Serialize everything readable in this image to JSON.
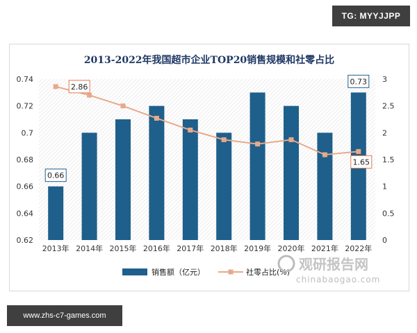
{
  "tag": "TG: MYYJJPP",
  "footer_url": "www.zhs-c7-games.com",
  "watermark": {
    "brand": "观研报告网",
    "url": "chinabaogao.com"
  },
  "colors": {
    "bar": "#1f5f8b",
    "line": "#e8a98a",
    "marker": "#e8a98a",
    "title": "#1f3864",
    "label_border_bar": "#1f5f8b",
    "label_border_line": "#e07b52"
  },
  "chart_data": {
    "type": "bar",
    "title": "2013-2022年我国超市企业TOP20销售规模和社零占比",
    "categories": [
      "2013年",
      "2014年",
      "2015年",
      "2016年",
      "2017年",
      "2018年",
      "2019年",
      "2020年",
      "2021年",
      "2022年"
    ],
    "series": [
      {
        "name": "销售额（亿元）",
        "type": "bar",
        "axis": "left",
        "values": [
          0.66,
          0.7,
          0.71,
          0.72,
          0.71,
          0.7,
          0.73,
          0.72,
          0.7,
          0.73
        ]
      },
      {
        "name": "社零占比(%)",
        "type": "line",
        "axis": "right",
        "values": [
          2.86,
          2.7,
          2.5,
          2.27,
          2.05,
          1.87,
          1.79,
          1.87,
          1.59,
          1.65
        ]
      }
    ],
    "left_axis": {
      "min": 0.62,
      "max": 0.74,
      "ticks": [
        "0.62",
        "0.64",
        "0.66",
        "0.68",
        "0.7",
        "0.72",
        "0.74"
      ]
    },
    "right_axis": {
      "min": 0,
      "max": 3,
      "ticks": [
        "0",
        "0.5",
        "1",
        "1.5",
        "2",
        "2.5",
        "3"
      ]
    },
    "data_labels": {
      "bar_first": "0.66",
      "bar_last": "0.73",
      "line_first": "2.86",
      "line_last": "1.65"
    },
    "legend_position": "bottom",
    "grid": false
  }
}
